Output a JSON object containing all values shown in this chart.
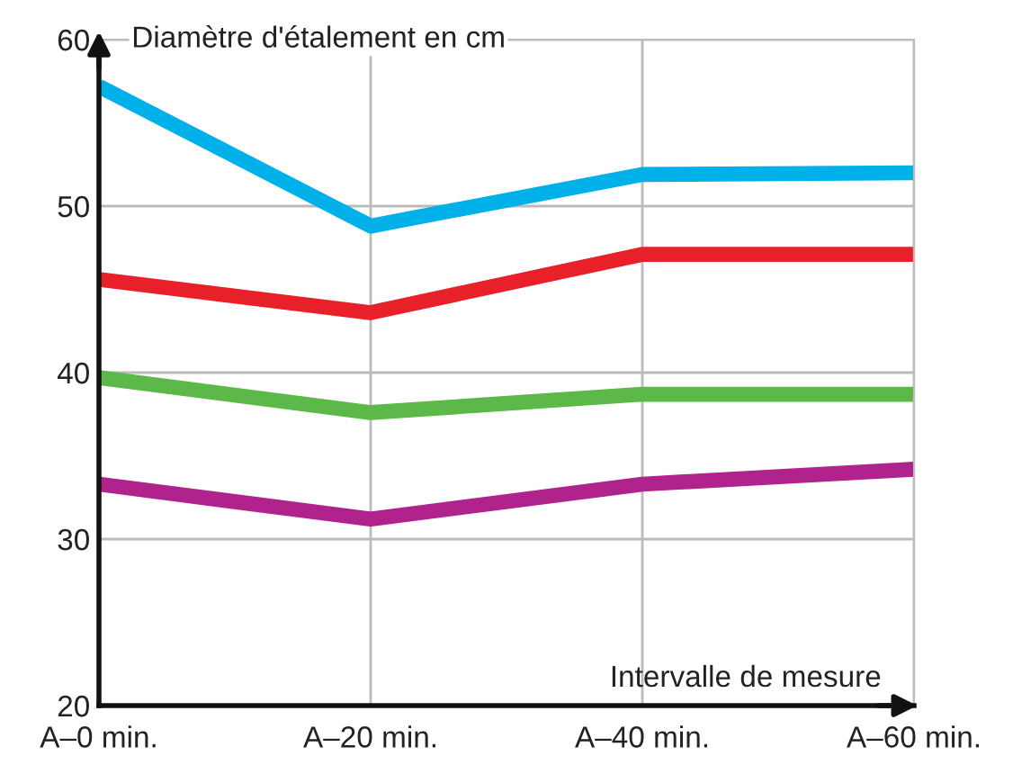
{
  "chart_data": {
    "type": "line",
    "ylabel": "Diamètre d'étalement en cm",
    "xlabel": "Intervalle de mesure",
    "categories": [
      "A–0 min.",
      "A–20 min.",
      "A–40 min.",
      "A–60 min."
    ],
    "series": [
      {
        "color": "#00b0e8",
        "values": [
          57.2,
          48.8,
          51.9,
          52.0
        ]
      },
      {
        "color": "#e8202a",
        "values": [
          45.6,
          43.6,
          47.1,
          47.1
        ]
      },
      {
        "color": "#5cb848",
        "values": [
          39.7,
          37.6,
          38.7,
          38.7
        ]
      },
      {
        "color": "#b0228c",
        "values": [
          33.3,
          31.2,
          33.3,
          34.2
        ]
      }
    ],
    "ylim": [
      20,
      60
    ],
    "yticks": [
      20,
      30,
      40,
      50,
      60
    ],
    "grid": true,
    "marker": "none",
    "line_style": "solid"
  }
}
